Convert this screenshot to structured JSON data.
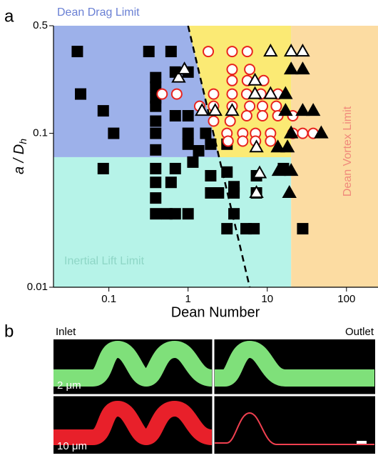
{
  "chart_data": {
    "type": "scatter",
    "panel_labels": [
      "a",
      "b"
    ],
    "x_label": "Dean Number",
    "y_label": {
      "text": "a / D",
      "subscript": "h"
    },
    "log_x": true,
    "log_y": true,
    "xlim": [
      0.02,
      250
    ],
    "ylim": [
      0.01,
      0.5
    ],
    "xticks": [
      0.1,
      1,
      10,
      100
    ],
    "yticks": [
      0.01,
      0.1,
      0.5
    ],
    "regions": [
      {
        "label": "Dean Drag Limit",
        "color": "#9db1ea",
        "label_color": "#6a80d4",
        "x": [
          0.02,
          20
        ],
        "y": [
          0.07,
          0.5
        ]
      },
      {
        "label": "Inertial Lift Limit",
        "color": "#b6f3e8",
        "label_color": "#8ed6c6",
        "x": [
          0.02,
          20
        ],
        "y": [
          0.01,
          0.07
        ]
      },
      {
        "label": "Dean Vortex Limit",
        "color": "#fcdca2",
        "label_color": "#f0897a",
        "x": [
          20,
          250
        ],
        "y": [
          0.01,
          0.5
        ]
      }
    ],
    "line_region": {
      "color": "#fbea74",
      "x_max": 20,
      "y": [
        0.07,
        0.5
      ]
    },
    "boundary_line": {
      "x": [
        1,
        6
      ],
      "y": [
        0.5,
        0.01
      ]
    },
    "series": [
      {
        "marker": "square",
        "color": "#000000",
        "fill": "#000000",
        "x": [
          0.04,
          0.044,
          0.085,
          0.115,
          0.085,
          0.32,
          0.61,
          0.39,
          0.39,
          0.39,
          0.39,
          0.39,
          0.39,
          0.39,
          0.39,
          0.39,
          0.39,
          0.39,
          0.69,
          0.69,
          0.69,
          1.0,
          1.0,
          1.0,
          1.0,
          1.0,
          1.15,
          1.36,
          1.67,
          1.93,
          1.93,
          1.93,
          2.42,
          3.1,
          3.1,
          3.1,
          3.8,
          3.8,
          3.8,
          5.4,
          6.8,
          7.3,
          7.3,
          16,
          28,
          0.61,
          0.69,
          0.54
        ],
        "values": [
          0.34,
          0.18,
          0.14,
          0.1,
          0.059,
          0.34,
          0.34,
          0.23,
          0.2,
          0.17,
          0.15,
          0.12,
          0.1,
          0.078,
          0.059,
          0.048,
          0.038,
          0.03,
          0.25,
          0.13,
          0.059,
          0.25,
          0.13,
          0.1,
          0.085,
          0.03,
          0.065,
          0.077,
          0.1,
          0.085,
          0.053,
          0.041,
          0.041,
          0.085,
          0.056,
          0.024,
          0.041,
          0.03,
          0.045,
          0.024,
          0.024,
          0.053,
          0.041,
          0.059,
          0.024,
          0.048,
          0.03,
          0.03
        ]
      },
      {
        "marker": "circle",
        "color": "#e8231e",
        "fill": "#ffffff",
        "x": [
          1.8,
          3.6,
          5.6,
          3.6,
          6.0,
          3.6,
          5.6,
          9.0,
          0.47,
          0.72,
          2.1,
          3.6,
          5.5,
          8.3,
          13.6,
          1.4,
          2.1,
          3.6,
          6.0,
          8.7,
          13,
          5.5,
          8.7,
          13.6,
          21,
          2.1,
          3.4,
          3.1,
          4.9,
          7.1,
          11,
          21,
          28,
          38,
          3.2,
          4.9,
          7.1,
          11
        ],
        "values": [
          0.34,
          0.34,
          0.34,
          0.26,
          0.26,
          0.22,
          0.22,
          0.22,
          0.18,
          0.18,
          0.18,
          0.18,
          0.18,
          0.18,
          0.18,
          0.15,
          0.15,
          0.15,
          0.15,
          0.15,
          0.15,
          0.13,
          0.13,
          0.13,
          0.13,
          0.12,
          0.12,
          0.1,
          0.1,
          0.1,
          0.1,
          0.1,
          0.1,
          0.1,
          0.089,
          0.089,
          0.089,
          0.089
        ]
      },
      {
        "marker": "triangle",
        "color": "#000000",
        "fill": "#ffffff",
        "x": [
          0.76,
          0.9,
          1.5,
          2.2,
          3.6,
          11,
          20,
          28,
          7,
          11,
          7,
          7.3,
          8,
          7.3
        ],
        "values": [
          0.23,
          0.26,
          0.14,
          0.14,
          0.14,
          0.34,
          0.34,
          0.34,
          0.18,
          0.18,
          0.22,
          0.081,
          0.055,
          0.041
        ]
      },
      {
        "marker": "triangle",
        "color": "#000000",
        "fill": "#000000",
        "x": [
          20,
          28,
          17,
          17,
          28,
          38,
          20,
          48,
          13.6,
          18,
          14,
          20,
          19
        ],
        "values": [
          0.26,
          0.26,
          0.18,
          0.14,
          0.14,
          0.14,
          0.1,
          0.1,
          0.081,
          0.081,
          0.057,
          0.057,
          0.041
        ]
      }
    ],
    "images": {
      "left_top": "Inlet",
      "right_top": "Outlet",
      "row_labels": [
        "2 μm",
        "10 μm"
      ]
    }
  }
}
